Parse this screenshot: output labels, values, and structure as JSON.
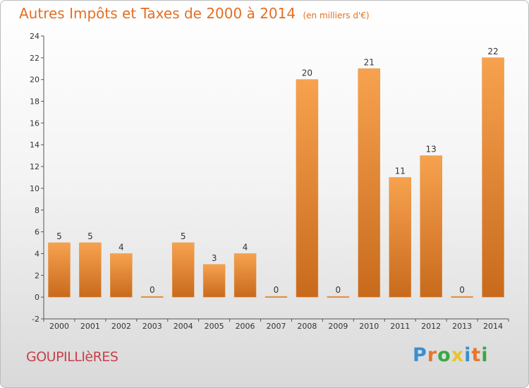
{
  "title": "Autres Impôts et Taxes de 2000 à 2014",
  "subtitle": "(en milliers d'€)",
  "commune": "GOUPILLIèRES",
  "logo": {
    "letters": [
      "P",
      "r",
      "o",
      "x",
      "i",
      "t",
      "i"
    ],
    "colors": [
      "#3a8fd0",
      "#e8762c",
      "#3aa843",
      "#e8c430",
      "#3a8fd0",
      "#e8762c",
      "#3aa843"
    ]
  },
  "colors": {
    "title": "#e46f24",
    "commune": "#c8404a",
    "bar_light": "#f7a24f",
    "bar_dark": "#c86a1c"
  },
  "chart_data": {
    "type": "bar",
    "categories": [
      "2000",
      "2001",
      "2002",
      "2003",
      "2004",
      "2005",
      "2006",
      "2007",
      "2008",
      "2009",
      "2010",
      "2011",
      "2012",
      "2013",
      "2014"
    ],
    "values": [
      5,
      5,
      4,
      0,
      5,
      3,
      4,
      0,
      20,
      0,
      21,
      11,
      13,
      0,
      22
    ],
    "ylim": [
      -2,
      24
    ],
    "yticks": [
      -2,
      0,
      2,
      4,
      6,
      8,
      10,
      12,
      14,
      16,
      18,
      20,
      22,
      24
    ],
    "grid": false,
    "xlabel": "",
    "ylabel": ""
  }
}
